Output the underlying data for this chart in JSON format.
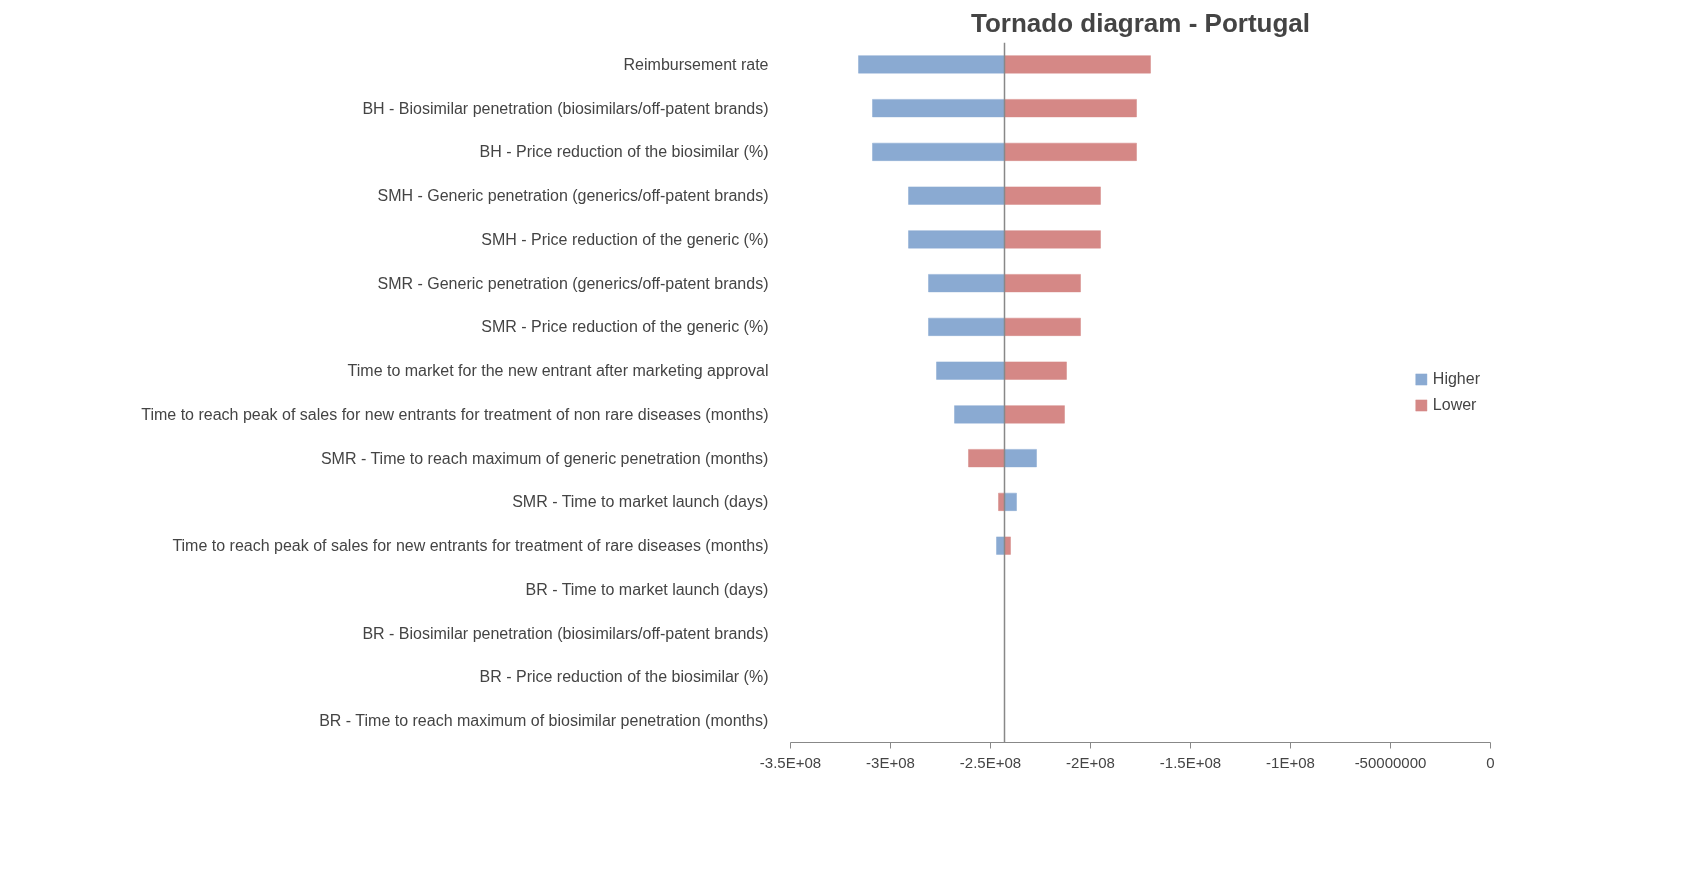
{
  "chart_data": {
    "type": "bar",
    "orientation": "horizontal",
    "title": "Tornado diagram - Portugal",
    "categories": [
      "Reimbursement rate",
      "BH - Biosimilar penetration (biosimilars/off-patent brands)",
      "BH - Price reduction of the biosimilar (%)",
      "SMH - Generic penetration (generics/off-patent brands)",
      "SMH - Price reduction of the generic (%)",
      "SMR - Generic penetration (generics/off-patent brands)",
      "SMR - Price reduction of the generic (%)",
      "Time to market for the new entrant after marketing approval",
      "Time to reach peak of sales for new entrants for treatment of non rare diseases (months)",
      "SMR - Time to reach maximum of generic penetration (months)",
      "SMR - Time to market launch (days)",
      "Time to reach peak of sales for new entrants for treatment of rare diseases (months)",
      "BR - Time to market launch (days)",
      "BR - Biosimilar penetration (biosimilars/off-patent brands)",
      "BR - Price reduction of the biosimilar (%)",
      "BR - Time to reach maximum of biosimilar penetration (months)"
    ],
    "series": [
      {
        "name": "Higher",
        "color": "#8aaad2",
        "base": [
          -243000000,
          -243000000,
          -243000000,
          -243000000,
          -243000000,
          -243000000,
          -243000000,
          -243000000,
          -243000000,
          -243000000,
          -243000000,
          -243000000,
          null,
          null,
          null,
          null
        ],
        "values": [
          -73000000,
          -66000000,
          -66000000,
          -48000000,
          -48000000,
          -38000000,
          -38000000,
          -34000000,
          -25000000,
          16000000,
          6000000,
          -4000000,
          null,
          null,
          null,
          null
        ]
      },
      {
        "name": "Lower",
        "color": "#d58886",
        "base": [
          -243000000,
          -243000000,
          -243000000,
          -243000000,
          -243000000,
          -243000000,
          -243000000,
          -243000000,
          -243000000,
          -243000000,
          -243000000,
          -243000000,
          null,
          null,
          null,
          null
        ],
        "values": [
          73000000,
          66000000,
          66000000,
          48000000,
          48000000,
          38000000,
          38000000,
          31000000,
          30000000,
          -18000000,
          -3000000,
          3000000,
          null,
          null,
          null,
          null
        ]
      }
    ],
    "ref_lines": [
      {
        "axis": "x",
        "value": -243000000,
        "color": "#888888"
      }
    ],
    "xlim": [
      -350000000,
      0
    ],
    "xticks": [
      {
        "value": -350000000,
        "label": "-3.5E+08"
      },
      {
        "value": -300000000,
        "label": "-3E+08"
      },
      {
        "value": -250000000,
        "label": "-2.5E+08"
      },
      {
        "value": -200000000,
        "label": "-2E+08"
      },
      {
        "value": -150000000,
        "label": "-1.5E+08"
      },
      {
        "value": -100000000,
        "label": "-1E+08"
      },
      -50000000,
      0
    ],
    "legend": "right",
    "grid": false
  }
}
